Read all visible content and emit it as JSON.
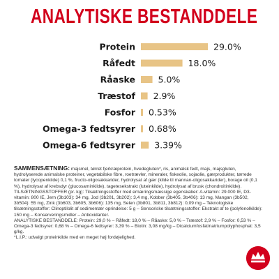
{
  "title": "ANALYTISKE BESTANDDELE",
  "colors": {
    "title": "#d2001c",
    "bar": "#e8c486",
    "text": "#1a1a1a",
    "logo": "#d2001c"
  },
  "chart_data": {
    "type": "bar",
    "orientation": "horizontal",
    "categories": [
      "Protein",
      "Råfedt",
      "Råaske",
      "Træstof",
      "Fosfor",
      "Omega-3 fedtsyrer",
      "Omega-6 fedtsyrer"
    ],
    "values": [
      29.0,
      18.0,
      5.0,
      2.9,
      0.53,
      0.68,
      3.39
    ],
    "value_labels": [
      "29.0%",
      "18.0%",
      "5.0%",
      "2.9%",
      "0.53%",
      "0.68%",
      "3.39%"
    ],
    "title": "ANALYTISKE BESTANDDELE",
    "grid": false,
    "legend": "none"
  },
  "composition": {
    "heading1": "SAMMENSÆTNING:",
    "text1": "majsmel, tørret fjerkræprotein, hvedegluten*, ris, animalsk fedt, majs, majsgluten, hydrolyserede animalske proteiner, vegetabilske fibre, roetrævler, mineraler, fiskeolie, sojaolie, gærprodukter, tørrede tomater (lycopenkilde) 0,1 %, fructo-oligosakkarider, hydrolysat af gær (kilde til mannan-oligosakkarider), borage oil (0,1 %), hydrolysat af krebsdyr (glucosaminkilde), tagetesekstrakt (luteinkilde), hydrolysat af brusk (chondroitinkilde).",
    "heading2": "TILSÆTNINGSSTOFFER (pr. kg):",
    "text2": "Tilsætningsstoffer med ernæringsmæssige egenskaber: A-vitamin: 29.000 IE, D3-vitamin: 800 IE, Jern (3b103): 34 mg, Jod (3b201, 3b202): 3,4 mg, Kobber (3b405, 3b406): 13 mg, Mangan (3b502, 3b504): 55 mg, Zink (3b603, 3b605, 3b606): 135 mg, Selen (3b801, 3b811, 3b812): 0,09 mg – Teknologiske tilsætningsstoffer: Clinoptilolit af sedimentær oprindelse: 5 g – Sensoriske tilsætningsstoffer: Ekstrakt af te (polyfenolkilde): 150 mg – Konserveringsmidler – Antioxidanter.",
    "heading3": "ANALYTISKE BESTANDDELE:",
    "text3": "Protein: 29,0 % – Råfedt: 18,0 % – Råaske: 5,0 % – Træstof: 2,9 % – Fosfor: 0,53 % – Omega-3 fedtsyrer: 0,68 % – Omega-6 fedtsyrer: 3,39 % – Biotin: 3,08 mg/kg – Dicalciumfosfat/natriumpolyphosphat: 3,5 g/kg.",
    "footnote": "*L.I.P.: udvalgt proteinkilde med en meget høj fordøjelighed."
  }
}
